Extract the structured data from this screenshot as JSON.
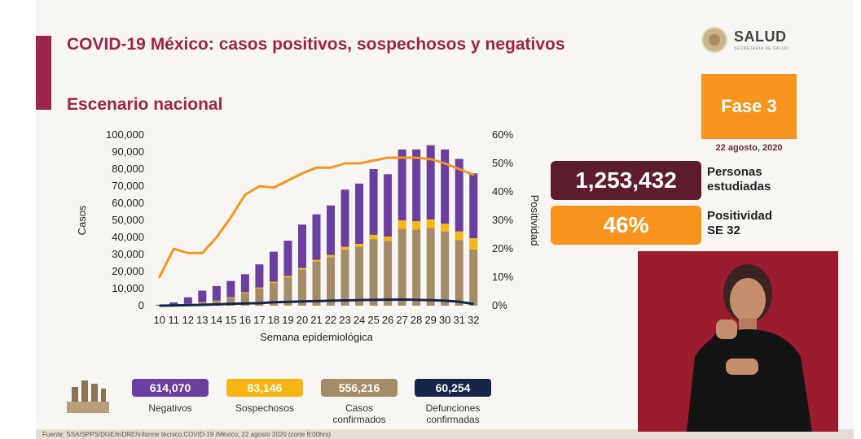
{
  "header": {
    "title": "COVID-19 México: casos positivos, sospechosos y negativos",
    "subtitle": "Escenario nacional"
  },
  "logo": {
    "name": "SALUD",
    "subtitle": "SECRETARÍA DE SALUD",
    "icon": "seal-icon"
  },
  "phase": {
    "label": "Fase 3",
    "date": "22 agosto, 2020"
  },
  "kpis": {
    "studied_value": "1,253,432",
    "studied_line1": "Personas",
    "studied_line2": "estudiadas",
    "positivity_value": "46%",
    "positivity_line1": "Positividad",
    "positivity_line2": "SE 32"
  },
  "stats": {
    "negatives": {
      "value": "614,070",
      "label": "Negativos",
      "color": "#6b3fa0"
    },
    "suspects": {
      "value": "83,146",
      "label": "Sospechosos",
      "color": "#f7b512"
    },
    "confirmed": {
      "value": "556,216",
      "line1": "Casos",
      "line2": "confirmados",
      "color": "#a48c68"
    },
    "deaths": {
      "value": "60,254",
      "line1": "Defunciones",
      "line2": "confirmadas",
      "color": "#15254a"
    }
  },
  "source": "Fuente: SSA/SPPS/DGE/InDRE/Informe técnico.COVID-19 /México, 22 agosto 2020 (corte 8:00hrs)",
  "colors": {
    "brand": "#9d2449",
    "orange": "#f7941d",
    "negatives": "#6b3fa0",
    "suspects": "#f7b512",
    "confirmed": "#a48c68",
    "deaths": "#15254a",
    "positivity": "#f7941d"
  },
  "chart_data": {
    "type": "bar",
    "stacked": true,
    "xlabel": "Semana epidemiológica",
    "ylabel": "Casos",
    "y2label": "Positividad",
    "ylim": [
      0,
      100000
    ],
    "y2lim": [
      0,
      60
    ],
    "yticks": [
      "0",
      "10,000",
      "20,000",
      "30,000",
      "40,000",
      "50,000",
      "60,000",
      "70,000",
      "80,000",
      "90,000",
      "100,000"
    ],
    "y2ticks": [
      "0%",
      "10%",
      "20%",
      "30%",
      "40%",
      "50%",
      "60%"
    ],
    "categories": [
      "10",
      "11",
      "12",
      "13",
      "14",
      "15",
      "16",
      "17",
      "18",
      "19",
      "20",
      "21",
      "22",
      "23",
      "24",
      "25",
      "26",
      "27",
      "28",
      "29",
      "30",
      "31",
      "32"
    ],
    "series": [
      {
        "name": "Casos confirmados",
        "kind": "bar",
        "values": [
          100,
          400,
          1000,
          1800,
          2700,
          4600,
          7400,
          10000,
          13300,
          16600,
          21200,
          25900,
          28500,
          33000,
          34500,
          39000,
          38000,
          45000,
          44500,
          45500,
          43500,
          38500,
          33000
        ]
      },
      {
        "name": "Sospechosos",
        "kind": "bar",
        "values": [
          20,
          50,
          100,
          200,
          300,
          400,
          500,
          600,
          700,
          800,
          900,
          1000,
          1200,
          1500,
          1700,
          2500,
          2500,
          5000,
          5000,
          5000,
          4500,
          5000,
          6500
        ]
      },
      {
        "name": "Negativos",
        "kind": "bar",
        "values": [
          400,
          1500,
          3800,
          6800,
          8500,
          9500,
          10500,
          13600,
          17600,
          20700,
          25400,
          26600,
          29000,
          33500,
          35300,
          38500,
          36500,
          41500,
          42000,
          43500,
          43500,
          42500,
          38000
        ]
      },
      {
        "name": "Defunciones confirmadas",
        "kind": "line",
        "values": [
          0,
          100,
          300,
          500,
          800,
          1100,
          1300,
          1500,
          2000,
          2200,
          2500,
          2700,
          2900,
          3100,
          3300,
          3400,
          3500,
          3600,
          3400,
          3200,
          2900,
          2300,
          1000
        ]
      },
      {
        "name": "Positividad",
        "kind": "line",
        "axis": "right",
        "values": [
          10,
          20,
          18.5,
          18.5,
          24,
          31,
          39,
          42,
          41.5,
          44,
          46.5,
          48.5,
          48.5,
          50,
          50,
          51,
          52,
          52,
          52,
          51.5,
          50,
          48,
          46
        ]
      }
    ]
  }
}
